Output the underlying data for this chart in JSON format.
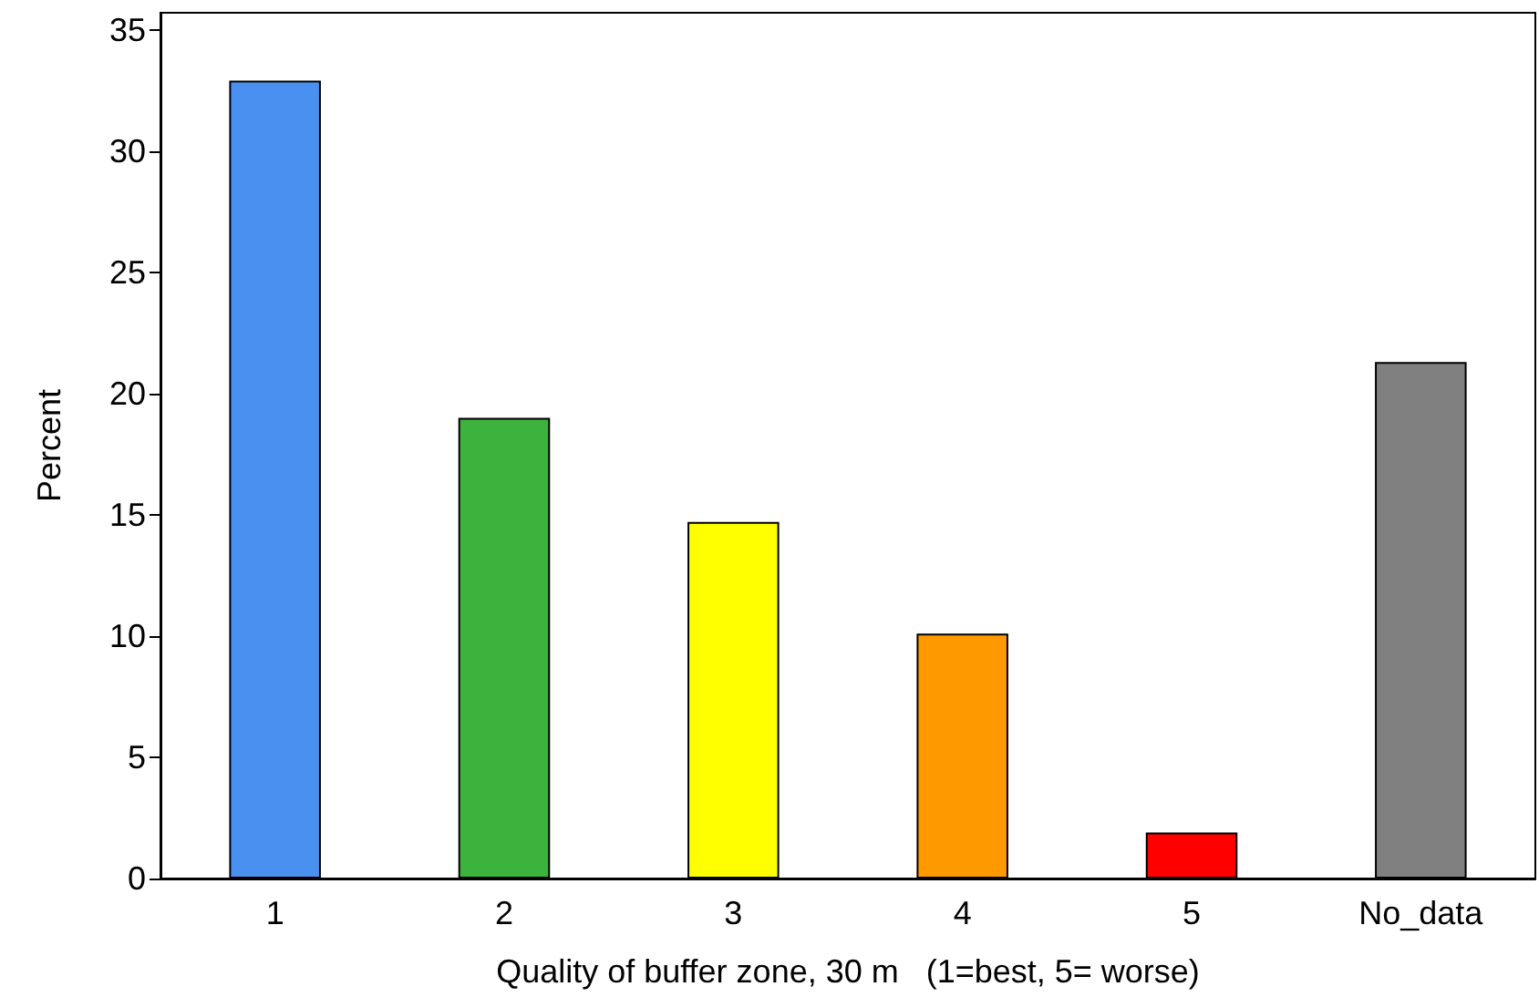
{
  "chart_data": {
    "type": "bar",
    "xlabel": "Quality of buffer zone, 30 m   (1=best, 5= worse)",
    "ylabel": "Percent",
    "categories": [
      "1",
      "2",
      "3",
      "4",
      "5",
      "No_data"
    ],
    "values": [
      32.9,
      19.0,
      14.7,
      10.1,
      1.9,
      21.3
    ],
    "colors": [
      "#4a90f0",
      "#3cb33c",
      "#ffff00",
      "#ff9900",
      "#ff0000",
      "#808080"
    ],
    "ylim": [
      0,
      35.7
    ],
    "yticks": [
      0,
      5,
      10,
      15,
      20,
      25,
      30,
      35
    ],
    "grid": false
  }
}
